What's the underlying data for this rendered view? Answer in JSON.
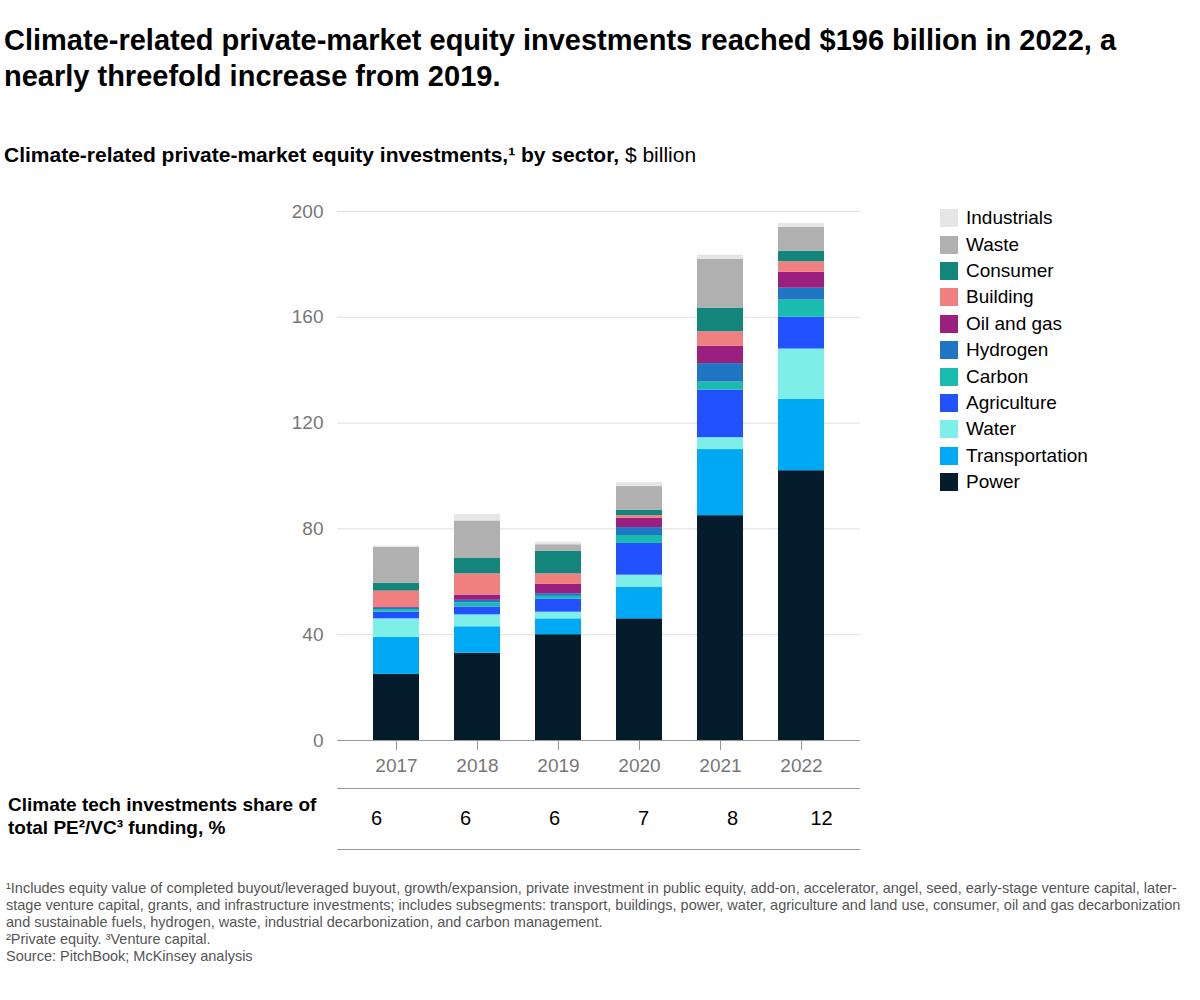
{
  "chart_data": {
    "type": "bar",
    "stacked": true,
    "title": "Climate-related private-market equity investments reached $196 billion in 2022, a nearly threefold increase from 2019.",
    "subtitle": "Climate-related private-market equity investments,¹ by sector, $ billion",
    "categories": [
      "2017",
      "2018",
      "2019",
      "2020",
      "2021",
      "2022"
    ],
    "series": [
      {
        "name": "Power",
        "color": "#051c2c",
        "values": [
          25,
          33,
          40,
          46,
          85,
          102
        ]
      },
      {
        "name": "Transportation",
        "color": "#00a9f4",
        "values": [
          14,
          10,
          6,
          12,
          25,
          27
        ]
      },
      {
        "name": "Water",
        "color": "#7eeee8",
        "values": [
          7,
          4.5,
          2.5,
          4.5,
          4.5,
          19
        ]
      },
      {
        "name": "Agriculture",
        "color": "#2251ff",
        "values": [
          2.5,
          3,
          5,
          12,
          18,
          12
        ]
      },
      {
        "name": "Carbon",
        "color": "#1abcb0",
        "values": [
          1,
          1.5,
          1,
          3,
          3,
          6.5
        ]
      },
      {
        "name": "Hydrogen",
        "color": "#1f77c4",
        "values": [
          0.5,
          1,
          1,
          3,
          7,
          4.5
        ]
      },
      {
        "name": "Oil and gas",
        "color": "#9b1f7e",
        "values": [
          0.5,
          2,
          3.5,
          3.5,
          6.5,
          6
        ]
      },
      {
        "name": "Building",
        "color": "#f08080",
        "values": [
          6,
          8,
          4,
          1,
          5.5,
          4
        ]
      },
      {
        "name": "Consumer",
        "color": "#14857a",
        "values": [
          3,
          6,
          8.5,
          2,
          9,
          4
        ]
      },
      {
        "name": "Waste",
        "color": "#b0b0b0",
        "values": [
          13.5,
          14,
          2.5,
          9,
          18.5,
          9
        ]
      },
      {
        "name": "Industrials",
        "color": "#e6e6e6",
        "values": [
          0.5,
          2.5,
          1,
          1.5,
          1.5,
          1.5
        ]
      }
    ],
    "ylim": [
      0,
      200
    ],
    "yticks": [
      0,
      40,
      80,
      120,
      160,
      200
    ],
    "grid": true,
    "legend": "right",
    "table_row": {
      "label": "Climate tech investments share of total PE²/VC³ funding, %",
      "values": [
        6,
        6,
        6,
        7,
        8,
        12
      ]
    },
    "notes": [
      "¹Includes equity value of completed buyout/leveraged buyout, growth/expansion, private investment in public equity, add-on, accelerator, angel, seed, early-stage venture capital, later-stage venture capital, grants, and infrastructure investments; includes subsegments: transport, buildings, power, water, agriculture and land use, consumer, oil and gas decarbonization and sustainable fuels, hydrogen, waste, industrial decarbonization, and carbon management.",
      "²Private equity. ³Venture capital.",
      "Source: PitchBook; McKinsey analysis"
    ]
  }
}
